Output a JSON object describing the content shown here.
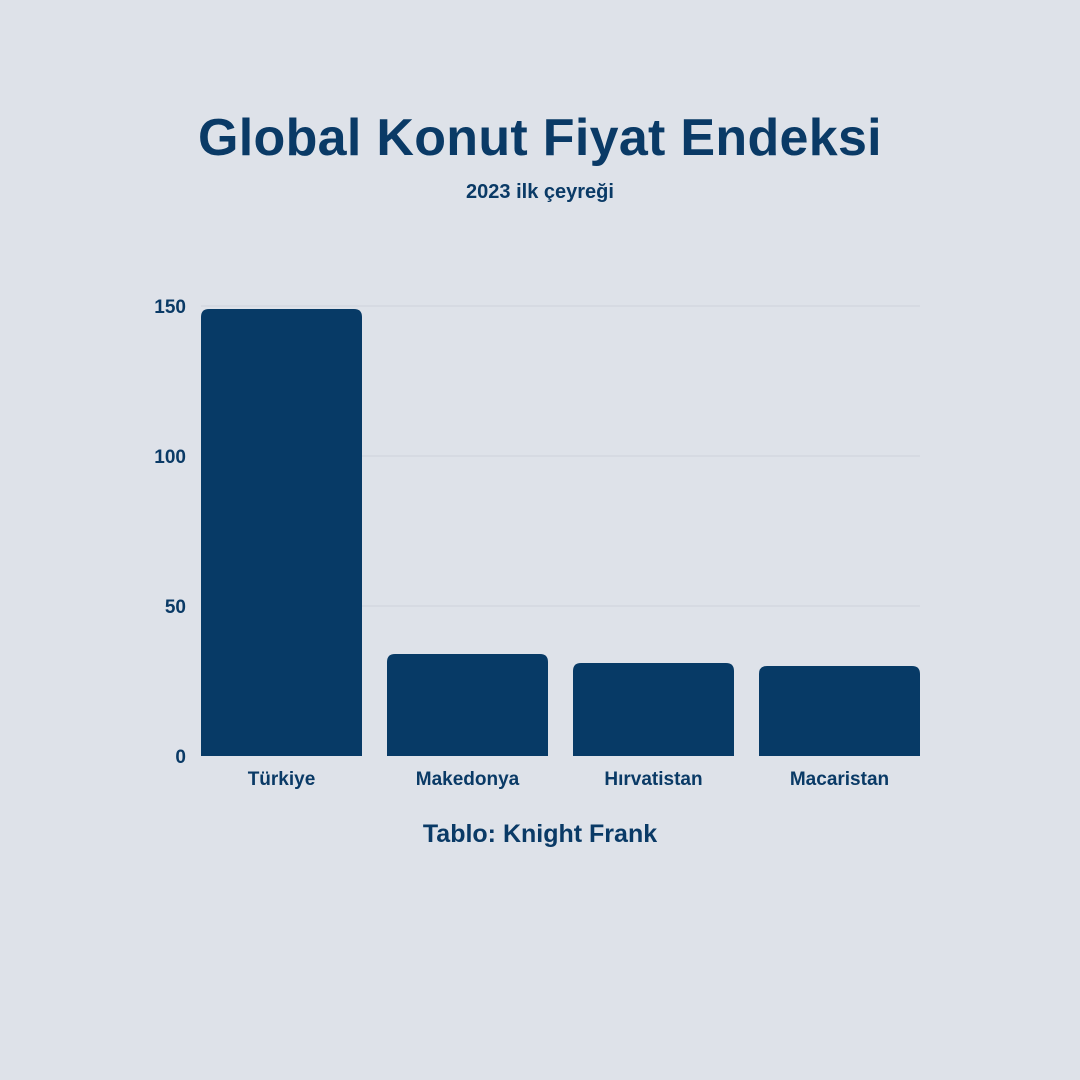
{
  "title": "Global Konut Fiyat Endeksi",
  "subtitle": "2023 ilk çeyreği",
  "source": "Tablo: Knight Frank",
  "colors": {
    "background": "#dee2e9",
    "bar": "#073a66",
    "text": "#0a3a66",
    "grid": "#cdd3dc"
  },
  "chart_data": {
    "type": "bar",
    "categories": [
      "Türkiye",
      "Makedonya",
      "Hırvatistan",
      "Macaristan"
    ],
    "values": [
      149,
      34,
      31,
      30
    ],
    "yticks": [
      "0",
      "50",
      "100",
      "150"
    ],
    "ylim": [
      0,
      150
    ],
    "grid": true,
    "legend": "none"
  }
}
